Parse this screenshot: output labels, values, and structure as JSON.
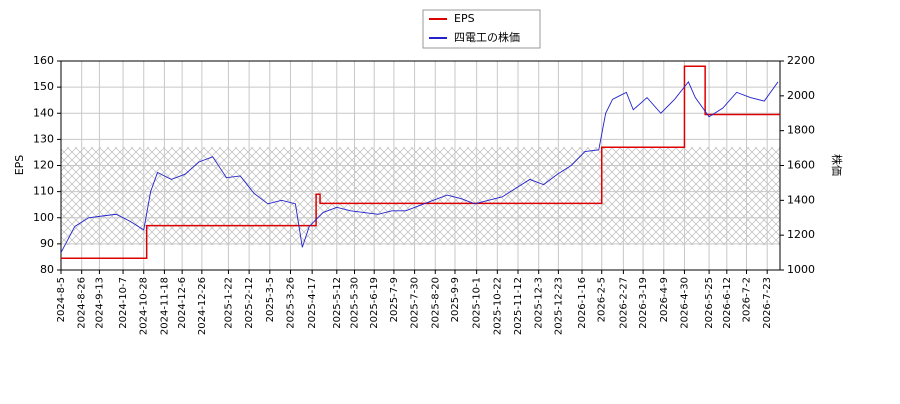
{
  "chart_data": {
    "type": "line",
    "xlim": [
      "2024-8-5",
      "2026-8-5"
    ],
    "xticks": [
      "2024-8-5",
      "2024-8-26",
      "2024-9-13",
      "2024-10-7",
      "2024-10-28",
      "2024-11-18",
      "2024-12-6",
      "2024-12-26",
      "2025-1-22",
      "2025-2-12",
      "2025-3-5",
      "2025-3-26",
      "2025-4-17",
      "2025-5-12",
      "2025-5-30",
      "2025-6-19",
      "2025-7-9",
      "2025-7-30",
      "2025-8-20",
      "2025-9-9",
      "2025-10-1",
      "2025-10-22",
      "2025-11-12",
      "2025-12-3",
      "2025-12-23",
      "2026-1-16",
      "2026-2-5",
      "2026-2-27",
      "2026-3-19",
      "2026-4-9",
      "2026-4-30",
      "2026-5-25",
      "2026-6-12",
      "2026-7-2",
      "2026-7-23"
    ],
    "ylabel": "EPS",
    "ylim": [
      80,
      160
    ],
    "yticks": [
      80,
      90,
      100,
      110,
      120,
      130,
      140,
      150,
      160
    ],
    "y2label": "株価",
    "y2lim": [
      1000,
      2200
    ],
    "y2ticks": [
      1000,
      1200,
      1400,
      1600,
      1800,
      2000,
      2200
    ],
    "grid": true,
    "band": [
      89.5,
      127
    ],
    "legend": "top",
    "series": [
      {
        "name": "EPS",
        "color": "#dd0000",
        "step": true,
        "x": [
          "2024-8-5",
          "2024-10-31",
          "2025-4-21",
          "2025-4-25",
          "2026-2-5",
          "2026-4-30",
          "2026-5-21"
        ],
        "values": [
          84.5,
          97,
          109,
          105.5,
          127,
          158,
          139.5
        ]
      },
      {
        "name": "四電工の株価",
        "color": "#2222cc",
        "axis": "y2",
        "x": [
          "2024-8-5",
          "2024-8-19",
          "2024-9-2",
          "2024-9-16",
          "2024-9-30",
          "2024-10-14",
          "2024-10-28",
          "2024-11-4",
          "2024-11-11",
          "2024-11-25",
          "2024-12-9",
          "2024-12-23",
          "2025-1-6",
          "2025-1-20",
          "2025-2-3",
          "2025-2-17",
          "2025-3-3",
          "2025-3-17",
          "2025-3-31",
          "2025-4-7",
          "2025-4-14",
          "2025-4-28",
          "2025-5-12",
          "2025-5-26",
          "2025-6-9",
          "2025-6-23",
          "2025-7-7",
          "2025-7-21",
          "2025-8-4",
          "2025-8-18",
          "2025-9-1",
          "2025-9-15",
          "2025-9-29",
          "2025-10-13",
          "2025-10-27",
          "2025-11-10",
          "2025-11-24",
          "2025-12-8",
          "2025-12-22",
          "2026-1-5",
          "2026-1-19",
          "2026-2-2",
          "2026-2-9",
          "2026-2-16",
          "2026-2-23",
          "2026-3-2",
          "2026-3-9",
          "2026-3-23",
          "2026-4-6",
          "2026-4-20",
          "2026-5-4",
          "2026-5-11",
          "2026-5-25",
          "2026-6-8",
          "2026-6-22",
          "2026-7-6",
          "2026-7-20",
          "2026-8-3"
        ],
        "values": [
          1100,
          1250,
          1300,
          1310,
          1320,
          1280,
          1230,
          1450,
          1560,
          1520,
          1550,
          1620,
          1650,
          1530,
          1540,
          1440,
          1380,
          1400,
          1380,
          1130,
          1250,
          1330,
          1360,
          1340,
          1330,
          1320,
          1340,
          1340,
          1370,
          1400,
          1430,
          1410,
          1380,
          1400,
          1420,
          1470,
          1520,
          1490,
          1550,
          1600,
          1680,
          1690,
          1900,
          1980,
          2000,
          2020,
          1920,
          1990,
          1900,
          1980,
          2080,
          1990,
          1880,
          1930,
          2020,
          1990,
          1970,
          2080
        ]
      }
    ]
  }
}
